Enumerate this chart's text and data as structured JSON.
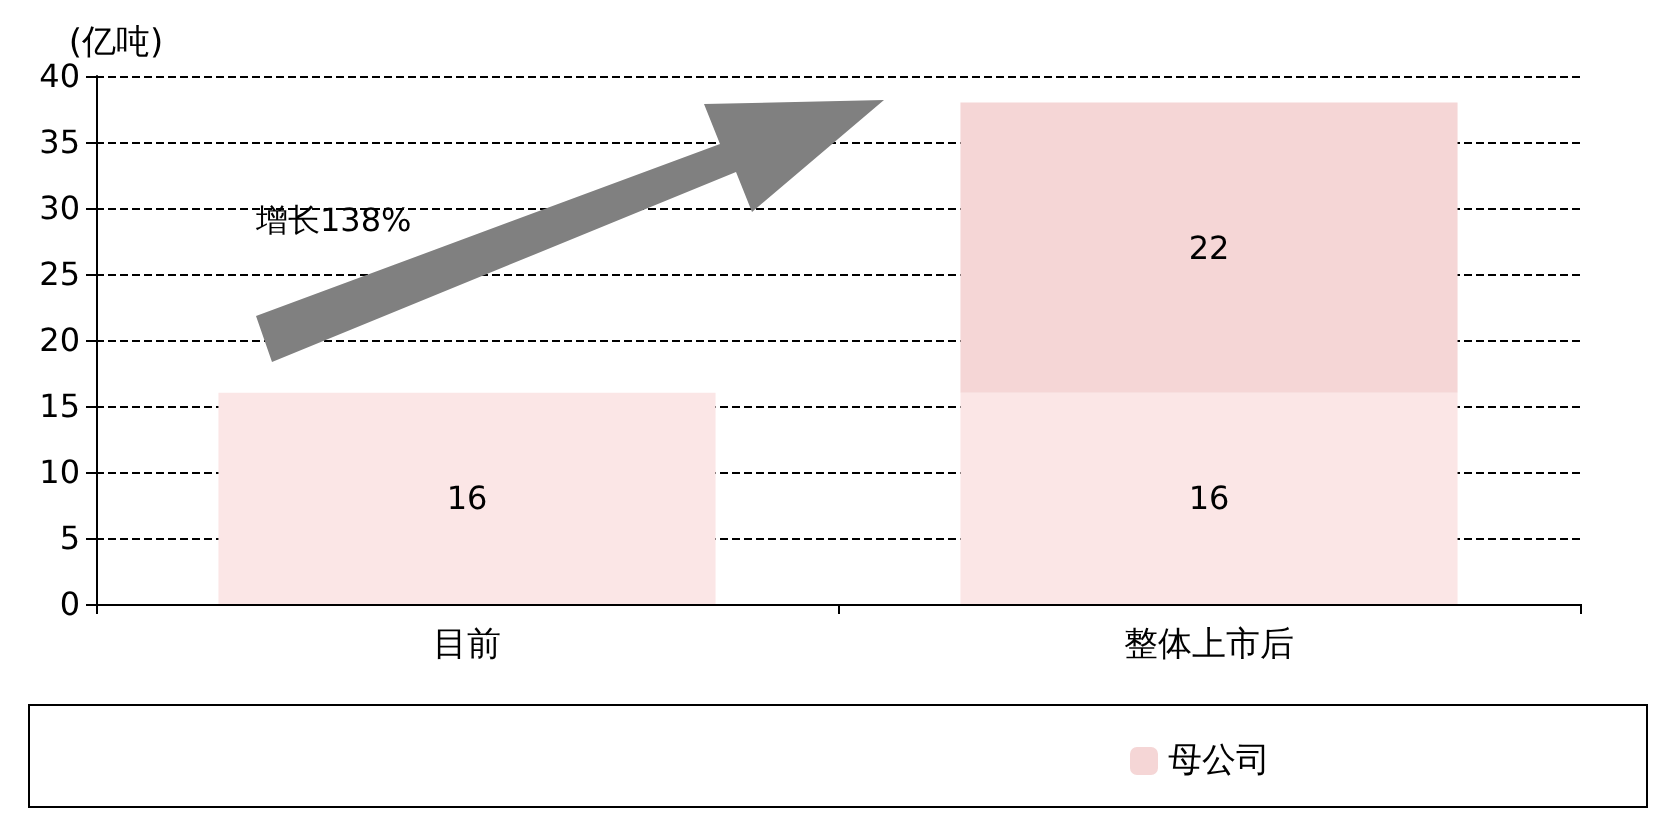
{
  "chart_data": {
    "type": "bar",
    "stacked": true,
    "ylabel": "(亿吨)",
    "categories": [
      "目前",
      "整体上市后"
    ],
    "series": [
      {
        "color": "#fbe6e6",
        "values": [
          16,
          16
        ]
      },
      {
        "name": "母公司",
        "color": "#f5d6d6",
        "values": [
          null,
          22
        ]
      }
    ],
    "ylim": [
      0,
      40
    ],
    "yticks": [
      0,
      5,
      10,
      15,
      20,
      25,
      30,
      35,
      40
    ],
    "grid": "y",
    "legend": "bottom",
    "data_labels": true,
    "annotations": [
      "增长138%"
    ]
  }
}
